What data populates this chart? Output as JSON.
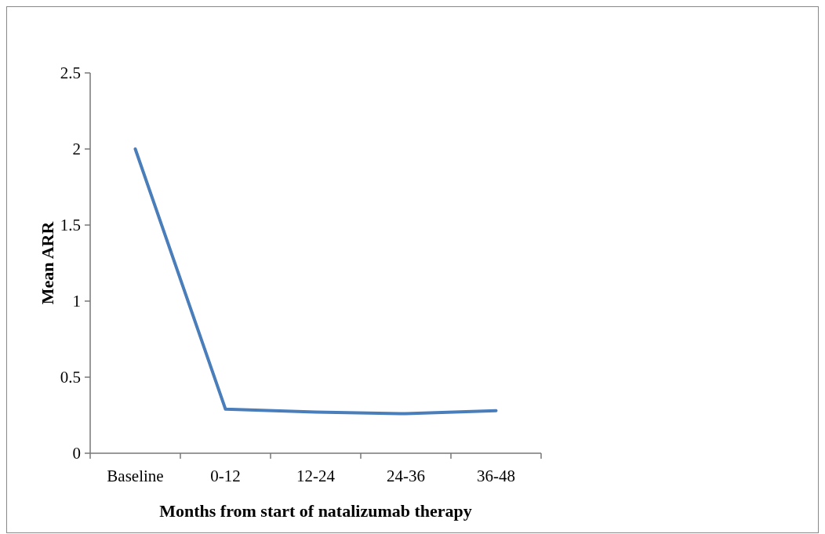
{
  "chart_data": {
    "type": "line",
    "xlabel": "Months from start of natalizumab therapy",
    "ylabel": "Mean ARR",
    "categories": [
      "Baseline",
      "0-12",
      "12-24",
      "24-36",
      "36-48"
    ],
    "series": [
      {
        "color": "#4a7ebb",
        "values": [
          2.0,
          0.29,
          0.27,
          0.26,
          0.28
        ]
      }
    ],
    "ylim": [
      0,
      2.5
    ],
    "yticks": [
      0,
      0.5,
      1,
      1.5,
      2,
      2.5
    ],
    "marker": "none",
    "line_style": "solid"
  }
}
